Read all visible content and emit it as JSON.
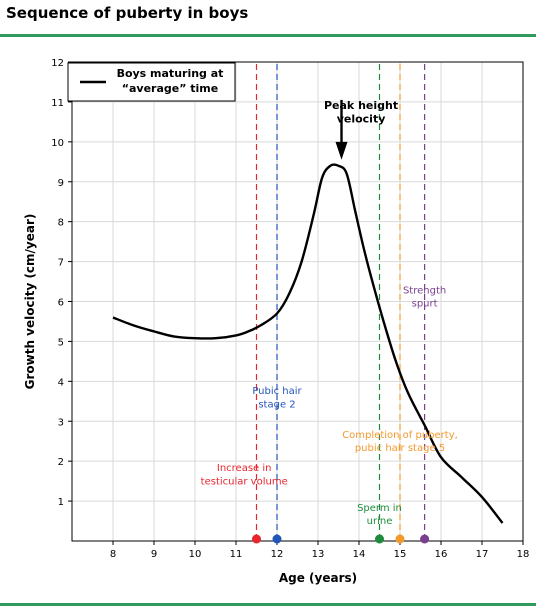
{
  "header": {
    "title": "Sequence of puberty in boys"
  },
  "colors": {
    "rule": "#2e9a5b",
    "curve": "#000000",
    "red": "#e8262d",
    "blue": "#2255b8",
    "green": "#1e8c3c",
    "orange": "#f39a2e",
    "purple": "#7a3f8f",
    "grid": "#d9d9d9"
  },
  "chart_data": {
    "type": "line",
    "title": "Sequence of puberty in boys",
    "xlabel": "Age (years)",
    "ylabel": "Growth velocity (cm/year)",
    "xlim": [
      7,
      18
    ],
    "ylim": [
      0,
      12
    ],
    "xticks": [
      8,
      9,
      10,
      11,
      12,
      13,
      14,
      15,
      16,
      17,
      18
    ],
    "yticks": [
      1,
      2,
      3,
      4,
      5,
      6,
      7,
      8,
      9,
      10,
      11,
      12
    ],
    "grid": true,
    "legend": {
      "position": "top-left",
      "label_line1": "Boys maturing at",
      "label_line2": "“average” time"
    },
    "series": [
      {
        "name": "Boys maturing at “average” time",
        "x": [
          8,
          8.5,
          9,
          9.5,
          10,
          10.5,
          11,
          11.3,
          11.6,
          12,
          12.3,
          12.6,
          12.9,
          13.1,
          13.3,
          13.5,
          13.7,
          13.9,
          14.1,
          14.3,
          14.6,
          14.9,
          15.2,
          15.6,
          16,
          16.5,
          17,
          17.5
        ],
        "y": [
          5.6,
          5.4,
          5.25,
          5.12,
          5.08,
          5.08,
          5.15,
          5.25,
          5.4,
          5.7,
          6.2,
          7.0,
          8.2,
          9.1,
          9.4,
          9.4,
          9.2,
          8.3,
          7.4,
          6.6,
          5.5,
          4.5,
          3.7,
          2.9,
          2.1,
          1.6,
          1.1,
          0.45
        ]
      }
    ],
    "annotations": {
      "peak": {
        "line1": "Peak height",
        "line2": "velocity",
        "x": 13.5
      },
      "events": [
        {
          "key": "testicular",
          "x": 11.5,
          "color": "red",
          "line1": "Increase in",
          "line2": "testicular volume"
        },
        {
          "key": "pubic2",
          "x": 12.0,
          "color": "blue",
          "line1": "Pubic hair",
          "line2": "stage 2"
        },
        {
          "key": "sperm",
          "x": 14.5,
          "color": "green",
          "line1": "Sperm in",
          "line2": "urine"
        },
        {
          "key": "completion",
          "x": 15.0,
          "color": "orange",
          "line1": "Completion of puberty,",
          "line2": "pubic hair stage 5"
        },
        {
          "key": "strength",
          "x": 15.6,
          "color": "purple",
          "line1": "Strength",
          "line2": "spurt"
        }
      ]
    }
  }
}
